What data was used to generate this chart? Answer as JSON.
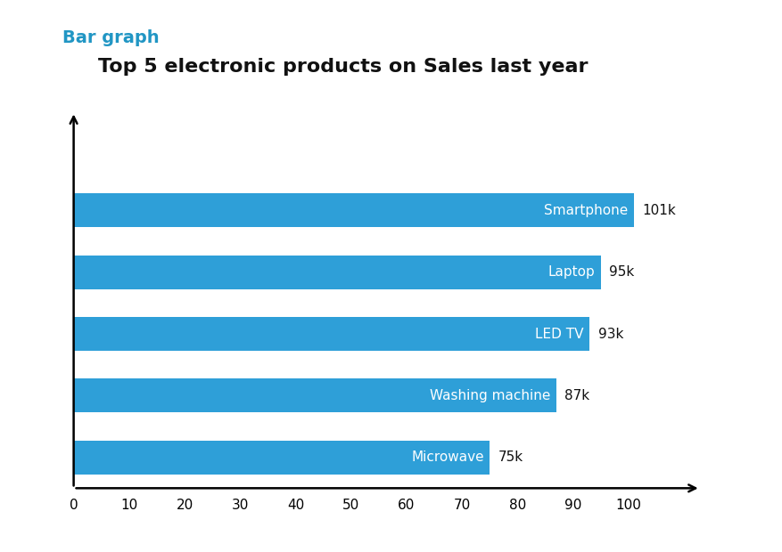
{
  "title_label": "Bar graph",
  "title_label_color": "#2196C4",
  "subtitle": "Top 5 electronic products on Sales last year",
  "subtitle_color": "#111111",
  "categories": [
    "Microwave",
    "Washing machine",
    "LED TV",
    "Laptop",
    "Smartphone"
  ],
  "values": [
    75,
    87,
    93,
    95,
    101
  ],
  "value_labels": [
    "75k",
    "87k",
    "93k",
    "95k",
    "101k"
  ],
  "bar_color": "#2E9FD8",
  "bar_label_color": "#ffffff",
  "value_label_color": "#111111",
  "xlim": [
    -2,
    115
  ],
  "ylim": [
    -0.55,
    5.8
  ],
  "xticks": [
    0,
    10,
    20,
    30,
    40,
    50,
    60,
    70,
    80,
    90,
    100
  ],
  "background_color": "#ffffff",
  "bar_height": 0.55,
  "title_fontsize": 14,
  "subtitle_fontsize": 16,
  "bar_label_fontsize": 11,
  "value_label_fontsize": 11,
  "tick_fontsize": 11
}
